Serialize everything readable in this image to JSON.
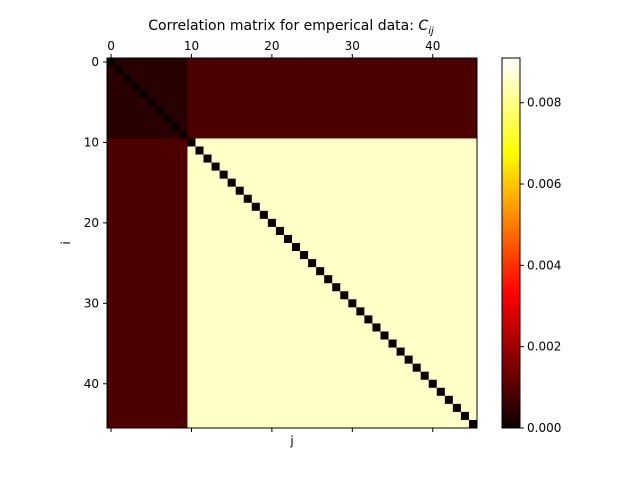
{
  "chart_data": {
    "type": "heatmap",
    "title": "Correlation matrix for emperical data: ",
    "title_symbol": "C",
    "title_subscript": "ij",
    "xlabel": "j",
    "ylabel": "i",
    "n": 46,
    "x_ticks": [
      0,
      10,
      20,
      30,
      40
    ],
    "x_tick_labels": [
      "0",
      "10",
      "20",
      "30",
      "40"
    ],
    "y_ticks": [
      0,
      10,
      20,
      30,
      40
    ],
    "y_tick_labels": [
      "0",
      "10",
      "20",
      "30",
      "40"
    ],
    "x_tick_labels_position": "top",
    "colormap": "hot",
    "colorbar": {
      "vmin": 0.0,
      "vmax": 0.0091,
      "ticks": [
        0.0,
        0.002,
        0.004,
        0.006,
        0.008
      ],
      "tick_labels": [
        "0.000",
        "0.002",
        "0.004",
        "0.006",
        "0.008"
      ],
      "placement": "right"
    },
    "blocks": {
      "low_group_indices": [
        0,
        9
      ],
      "high_group_indices": [
        10,
        45
      ],
      "diagonal_value": 0.0,
      "low_low_value": 0.0004,
      "low_high_value": 0.0009,
      "high_high_value": 0.0086
    },
    "grid": false,
    "legend": "none"
  }
}
